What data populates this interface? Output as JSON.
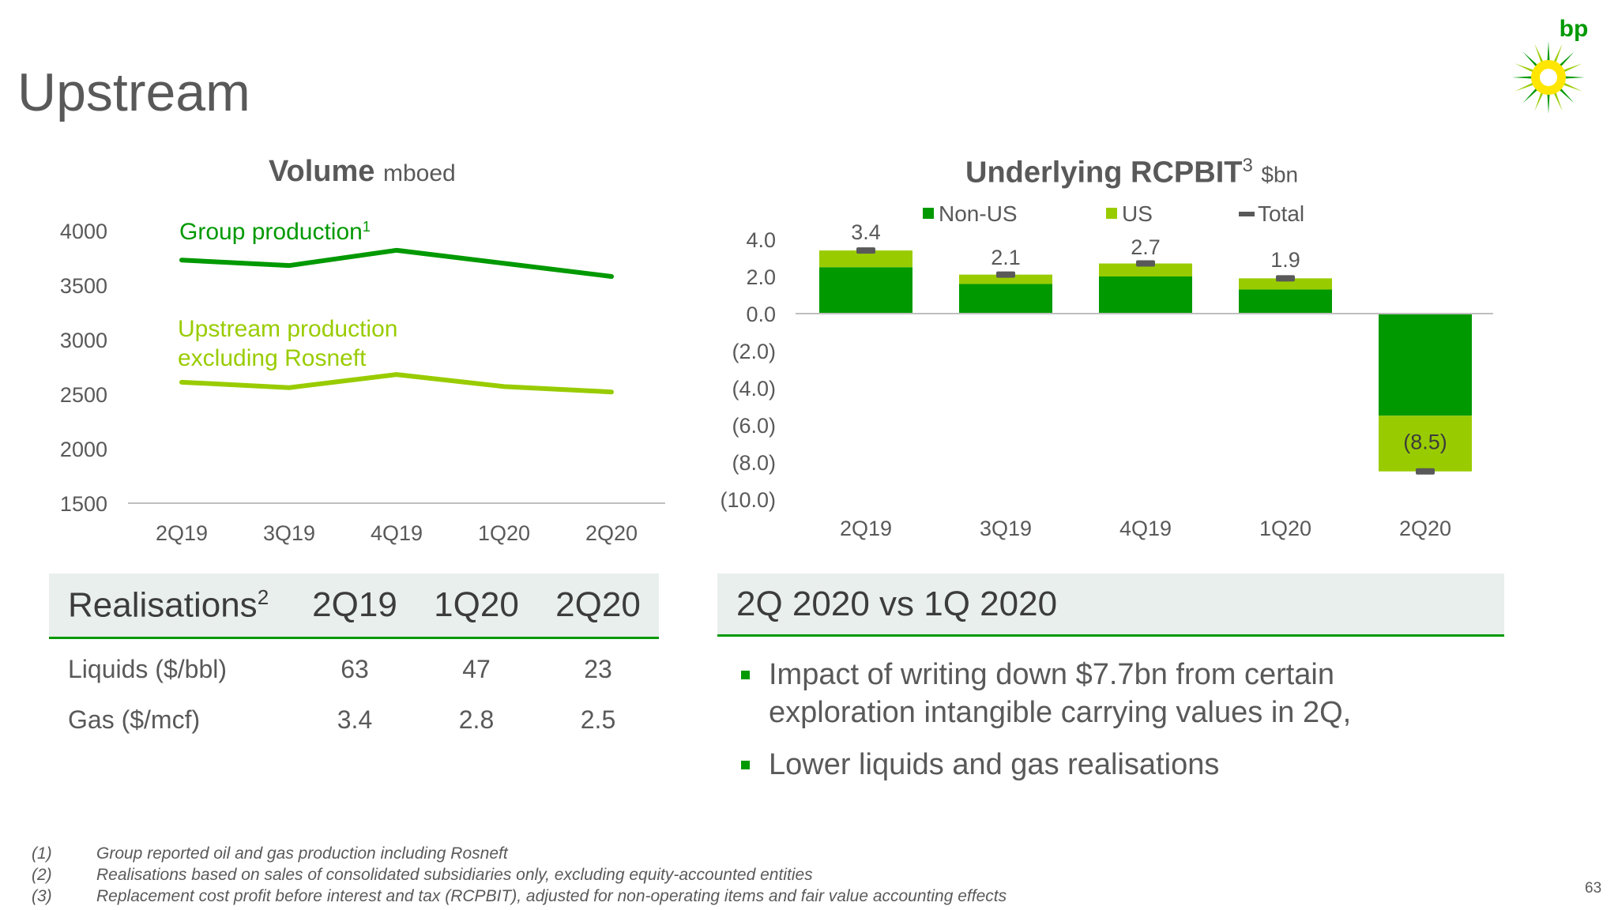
{
  "page": {
    "title": "Upstream",
    "page_number": "63",
    "brand": {
      "logo_text": "bp",
      "green": "#009900",
      "lime": "#99cc00",
      "yellow": "#ffe600"
    }
  },
  "volume_chart": {
    "title": "Volume",
    "unit": "mboed",
    "series_labels": {
      "group": "Group production",
      "group_sup": "1",
      "upstream_line1": "Upstream production",
      "upstream_line2": "excluding Rosneft"
    }
  },
  "rcpbit_chart": {
    "title": "Underlying RCPBIT",
    "title_sup": "3",
    "unit": "$bn",
    "legend": {
      "non_us": "Non-US",
      "us": "US",
      "total": "Total"
    }
  },
  "chart_data": [
    {
      "type": "line",
      "title": "Volume mboed",
      "categories": [
        "2Q19",
        "3Q19",
        "4Q19",
        "1Q20",
        "2Q20"
      ],
      "y_ticks": [
        "4000",
        "3500",
        "3000",
        "2500",
        "2000",
        "1500"
      ],
      "ylim": [
        1500,
        4000
      ],
      "grid": false,
      "series": [
        {
          "name": "Group production",
          "color": "#009900",
          "values": [
            3730,
            3680,
            3820,
            3700,
            3580
          ]
        },
        {
          "name": "Upstream production excluding Rosneft",
          "color": "#99cc00",
          "values": [
            2610,
            2560,
            2680,
            2570,
            2520
          ]
        }
      ]
    },
    {
      "type": "bar",
      "title": "Underlying RCPBIT $bn",
      "categories": [
        "2Q19",
        "3Q19",
        "4Q19",
        "1Q20",
        "2Q20"
      ],
      "y_ticks": [
        "4.0",
        "2.0",
        "0.0",
        "(2.0)",
        "(4.0)",
        "(6.0)",
        "(8.0)",
        "(10.0)"
      ],
      "ylim": [
        -10,
        4
      ],
      "legend_position": "top",
      "series": [
        {
          "name": "Non-US",
          "color": "#009900",
          "values": [
            2.5,
            1.6,
            2.0,
            1.3,
            -5.5
          ]
        },
        {
          "name": "US",
          "color": "#99cc00",
          "values": [
            0.9,
            0.5,
            0.7,
            0.6,
            -3.0
          ]
        },
        {
          "name": "Total",
          "color": "#595959",
          "values": [
            3.4,
            2.1,
            2.7,
            1.9,
            -8.5
          ]
        }
      ],
      "total_labels": [
        "3.4",
        "2.1",
        "2.7",
        "1.9",
        "(8.5)"
      ]
    }
  ],
  "realisations": {
    "header": {
      "label": "Realisations",
      "sup": "2",
      "cols": [
        "2Q19",
        "1Q20",
        "2Q20"
      ]
    },
    "rows": [
      {
        "label": "Liquids ($/bbl)",
        "values": [
          "63",
          "47",
          "23"
        ]
      },
      {
        "label": "Gas ($/mcf)",
        "values": [
          "3.4",
          "2.8",
          "2.5"
        ]
      }
    ]
  },
  "comparison": {
    "heading": "2Q 2020 vs 1Q 2020",
    "bullets": [
      "Impact of writing down $7.7bn from certain exploration intangible carrying values in 2Q,",
      "Lower liquids and gas realisations"
    ]
  },
  "footnotes": [
    {
      "num": "(1)",
      "text": "Group reported oil and gas production including Rosneft"
    },
    {
      "num": "(2)",
      "text": "Realisations based on sales of consolidated subsidiaries only, excluding equity-accounted entities"
    },
    {
      "num": "(3)",
      "text": "Replacement cost profit before interest and tax (RCPBIT), adjusted for non-operating items and fair value accounting effects"
    }
  ]
}
